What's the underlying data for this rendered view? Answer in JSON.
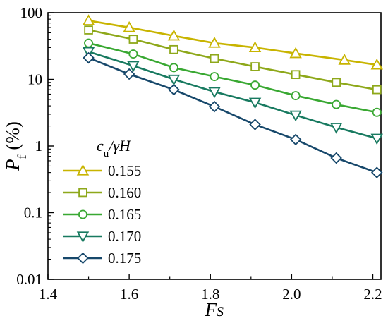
{
  "chart_data": {
    "type": "line",
    "xlabel": "Fs",
    "ylabel": {
      "main": "P",
      "sub": "f",
      "unit": " (%)"
    },
    "x_scale": "linear",
    "y_scale": "log",
    "xlim": [
      1.4,
      2.22
    ],
    "ylim": [
      0.01,
      100
    ],
    "x_ticks": [
      "1.4",
      "1.6",
      "1.8",
      "2.0",
      "2.2"
    ],
    "y_ticks": [
      "0.01",
      "0.1",
      "1",
      "10",
      "100"
    ],
    "grid": false,
    "legend": {
      "title": {
        "main": "c",
        "sub": "u",
        "rest": "/γH"
      },
      "placement": "lower-left"
    },
    "x": [
      1.5,
      1.6,
      1.7,
      1.8,
      1.9,
      2.0,
      2.1,
      2.2
    ],
    "series": [
      {
        "name": "0.155",
        "marker": "triangle-up",
        "color": "#c8b400",
        "points": [
          [
            1.5,
            76
          ],
          [
            1.6,
            60
          ],
          [
            1.71,
            45
          ],
          [
            1.81,
            35
          ],
          [
            1.91,
            30
          ],
          [
            2.01,
            24.5
          ],
          [
            2.13,
            19.5
          ],
          [
            2.21,
            16.5
          ]
        ]
      },
      {
        "name": "0.160",
        "marker": "square",
        "color": "#8ea81a",
        "points": [
          [
            1.5,
            55
          ],
          [
            1.61,
            40
          ],
          [
            1.71,
            28
          ],
          [
            1.81,
            20.5
          ],
          [
            1.91,
            15.5
          ],
          [
            2.01,
            11.8
          ],
          [
            2.11,
            9
          ],
          [
            2.21,
            7
          ]
        ]
      },
      {
        "name": "0.165",
        "marker": "circle",
        "color": "#39a832",
        "points": [
          [
            1.5,
            35
          ],
          [
            1.61,
            24
          ],
          [
            1.71,
            15
          ],
          [
            1.81,
            11
          ],
          [
            1.91,
            8.2
          ],
          [
            2.01,
            5.7
          ],
          [
            2.11,
            4.2
          ],
          [
            2.21,
            3.2
          ]
        ]
      },
      {
        "name": "0.170",
        "marker": "triangle-down",
        "color": "#187a60",
        "points": [
          [
            1.5,
            26
          ],
          [
            1.61,
            16
          ],
          [
            1.71,
            10
          ],
          [
            1.81,
            6.5
          ],
          [
            1.91,
            4.5
          ],
          [
            2.01,
            2.9
          ],
          [
            2.11,
            1.9
          ],
          [
            2.21,
            1.3
          ]
        ]
      },
      {
        "name": "0.175",
        "marker": "diamond",
        "color": "#17486b",
        "points": [
          [
            1.5,
            21
          ],
          [
            1.6,
            12
          ],
          [
            1.71,
            7
          ],
          [
            1.81,
            3.9
          ],
          [
            1.91,
            2.1
          ],
          [
            2.01,
            1.25
          ],
          [
            2.11,
            0.66
          ],
          [
            2.21,
            0.4
          ]
        ]
      }
    ]
  }
}
